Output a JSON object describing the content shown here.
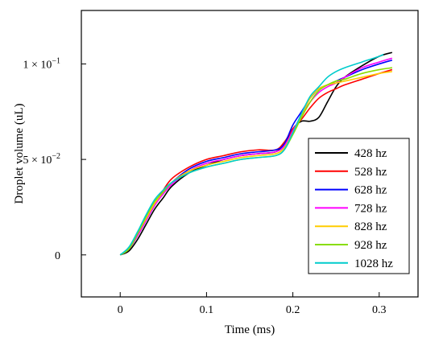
{
  "chart_data": {
    "type": "line",
    "xlabel": "Time (ms)",
    "ylabel": "Droplet volume (uL)",
    "xlim": [
      -0.045,
      0.345
    ],
    "ylim": [
      -0.022,
      0.128
    ],
    "grid": false,
    "legend_position": "lower-right",
    "x_ticks": [
      {
        "value": 0,
        "label": "0"
      },
      {
        "value": 0.1,
        "label": "0.1"
      },
      {
        "value": 0.2,
        "label": "0.2"
      },
      {
        "value": 0.3,
        "label": "0.3"
      }
    ],
    "y_ticks": [
      {
        "value": 0,
        "label": "0"
      },
      {
        "value": 0.05,
        "label": "5 × 10",
        "exp": "−2"
      },
      {
        "value": 0.1,
        "label": "1 × 10",
        "exp": "−1"
      }
    ],
    "series": [
      {
        "name": "428 hz",
        "color": "#000000",
        "x": [
          0,
          0.01,
          0.02,
          0.03,
          0.04,
          0.05,
          0.06,
          0.08,
          0.1,
          0.12,
          0.14,
          0.16,
          0.18,
          0.19,
          0.2,
          0.21,
          0.22,
          0.23,
          0.24,
          0.25,
          0.26,
          0.28,
          0.3,
          0.315
        ],
        "y": [
          0,
          0.002,
          0.008,
          0.016,
          0.024,
          0.03,
          0.036,
          0.043,
          0.047,
          0.05,
          0.052,
          0.053,
          0.054,
          0.058,
          0.066,
          0.07,
          0.07,
          0.072,
          0.08,
          0.088,
          0.093,
          0.099,
          0.104,
          0.106
        ]
      },
      {
        "name": "528 hz",
        "color": "#ff0000",
        "x": [
          0,
          0.01,
          0.02,
          0.03,
          0.04,
          0.05,
          0.06,
          0.08,
          0.1,
          0.12,
          0.14,
          0.16,
          0.18,
          0.19,
          0.2,
          0.21,
          0.22,
          0.23,
          0.24,
          0.25,
          0.26,
          0.28,
          0.3,
          0.315
        ],
        "y": [
          0,
          0.003,
          0.01,
          0.019,
          0.027,
          0.034,
          0.04,
          0.046,
          0.05,
          0.052,
          0.054,
          0.055,
          0.055,
          0.059,
          0.066,
          0.071,
          0.077,
          0.082,
          0.085,
          0.087,
          0.089,
          0.092,
          0.095,
          0.097
        ]
      },
      {
        "name": "628 hz",
        "color": "#0000ff",
        "x": [
          0,
          0.01,
          0.02,
          0.03,
          0.04,
          0.05,
          0.06,
          0.08,
          0.1,
          0.12,
          0.14,
          0.16,
          0.18,
          0.19,
          0.2,
          0.21,
          0.22,
          0.23,
          0.24,
          0.25,
          0.26,
          0.28,
          0.3,
          0.315
        ],
        "y": [
          0,
          0.003,
          0.01,
          0.018,
          0.026,
          0.033,
          0.038,
          0.045,
          0.049,
          0.051,
          0.053,
          0.054,
          0.055,
          0.058,
          0.068,
          0.075,
          0.082,
          0.087,
          0.089,
          0.091,
          0.093,
          0.097,
          0.1,
          0.102
        ]
      },
      {
        "name": "728 hz",
        "color": "#ff00ff",
        "x": [
          0,
          0.01,
          0.02,
          0.03,
          0.04,
          0.05,
          0.06,
          0.08,
          0.1,
          0.12,
          0.14,
          0.16,
          0.18,
          0.19,
          0.2,
          0.21,
          0.22,
          0.23,
          0.24,
          0.25,
          0.26,
          0.28,
          0.3,
          0.315
        ],
        "y": [
          0,
          0.003,
          0.01,
          0.018,
          0.026,
          0.032,
          0.037,
          0.044,
          0.048,
          0.05,
          0.052,
          0.053,
          0.054,
          0.057,
          0.065,
          0.073,
          0.08,
          0.085,
          0.088,
          0.09,
          0.093,
          0.098,
          0.101,
          0.103
        ]
      },
      {
        "name": "828 hz",
        "color": "#ffcc00",
        "x": [
          0,
          0.01,
          0.02,
          0.03,
          0.04,
          0.05,
          0.06,
          0.08,
          0.1,
          0.12,
          0.14,
          0.16,
          0.18,
          0.19,
          0.2,
          0.21,
          0.22,
          0.23,
          0.24,
          0.25,
          0.26,
          0.28,
          0.3,
          0.315
        ],
        "y": [
          0,
          0.003,
          0.011,
          0.019,
          0.027,
          0.033,
          0.038,
          0.044,
          0.047,
          0.049,
          0.051,
          0.052,
          0.053,
          0.056,
          0.064,
          0.073,
          0.082,
          0.087,
          0.089,
          0.09,
          0.091,
          0.093,
          0.095,
          0.096
        ]
      },
      {
        "name": "928 hz",
        "color": "#88dd00",
        "x": [
          0,
          0.01,
          0.02,
          0.03,
          0.04,
          0.05,
          0.06,
          0.08,
          0.1,
          0.12,
          0.14,
          0.16,
          0.18,
          0.19,
          0.2,
          0.21,
          0.22,
          0.23,
          0.24,
          0.25,
          0.26,
          0.28,
          0.3,
          0.315
        ],
        "y": [
          0,
          0.003,
          0.011,
          0.02,
          0.028,
          0.033,
          0.038,
          0.043,
          0.046,
          0.048,
          0.05,
          0.051,
          0.052,
          0.055,
          0.063,
          0.072,
          0.08,
          0.086,
          0.089,
          0.091,
          0.092,
          0.095,
          0.097,
          0.098
        ]
      },
      {
        "name": "1028 hz",
        "color": "#00cccc",
        "x": [
          0,
          0.01,
          0.02,
          0.03,
          0.04,
          0.05,
          0.06,
          0.08,
          0.1,
          0.12,
          0.14,
          0.16,
          0.18,
          0.19,
          0.2,
          0.21,
          0.22,
          0.23,
          0.24,
          0.25,
          0.26,
          0.28,
          0.3,
          0.305
        ],
        "y": [
          0,
          0.004,
          0.012,
          0.021,
          0.029,
          0.034,
          0.038,
          0.043,
          0.046,
          0.048,
          0.05,
          0.051,
          0.052,
          0.055,
          0.064,
          0.074,
          0.083,
          0.088,
          0.093,
          0.096,
          0.098,
          0.101,
          0.104,
          0.105
        ]
      }
    ]
  }
}
